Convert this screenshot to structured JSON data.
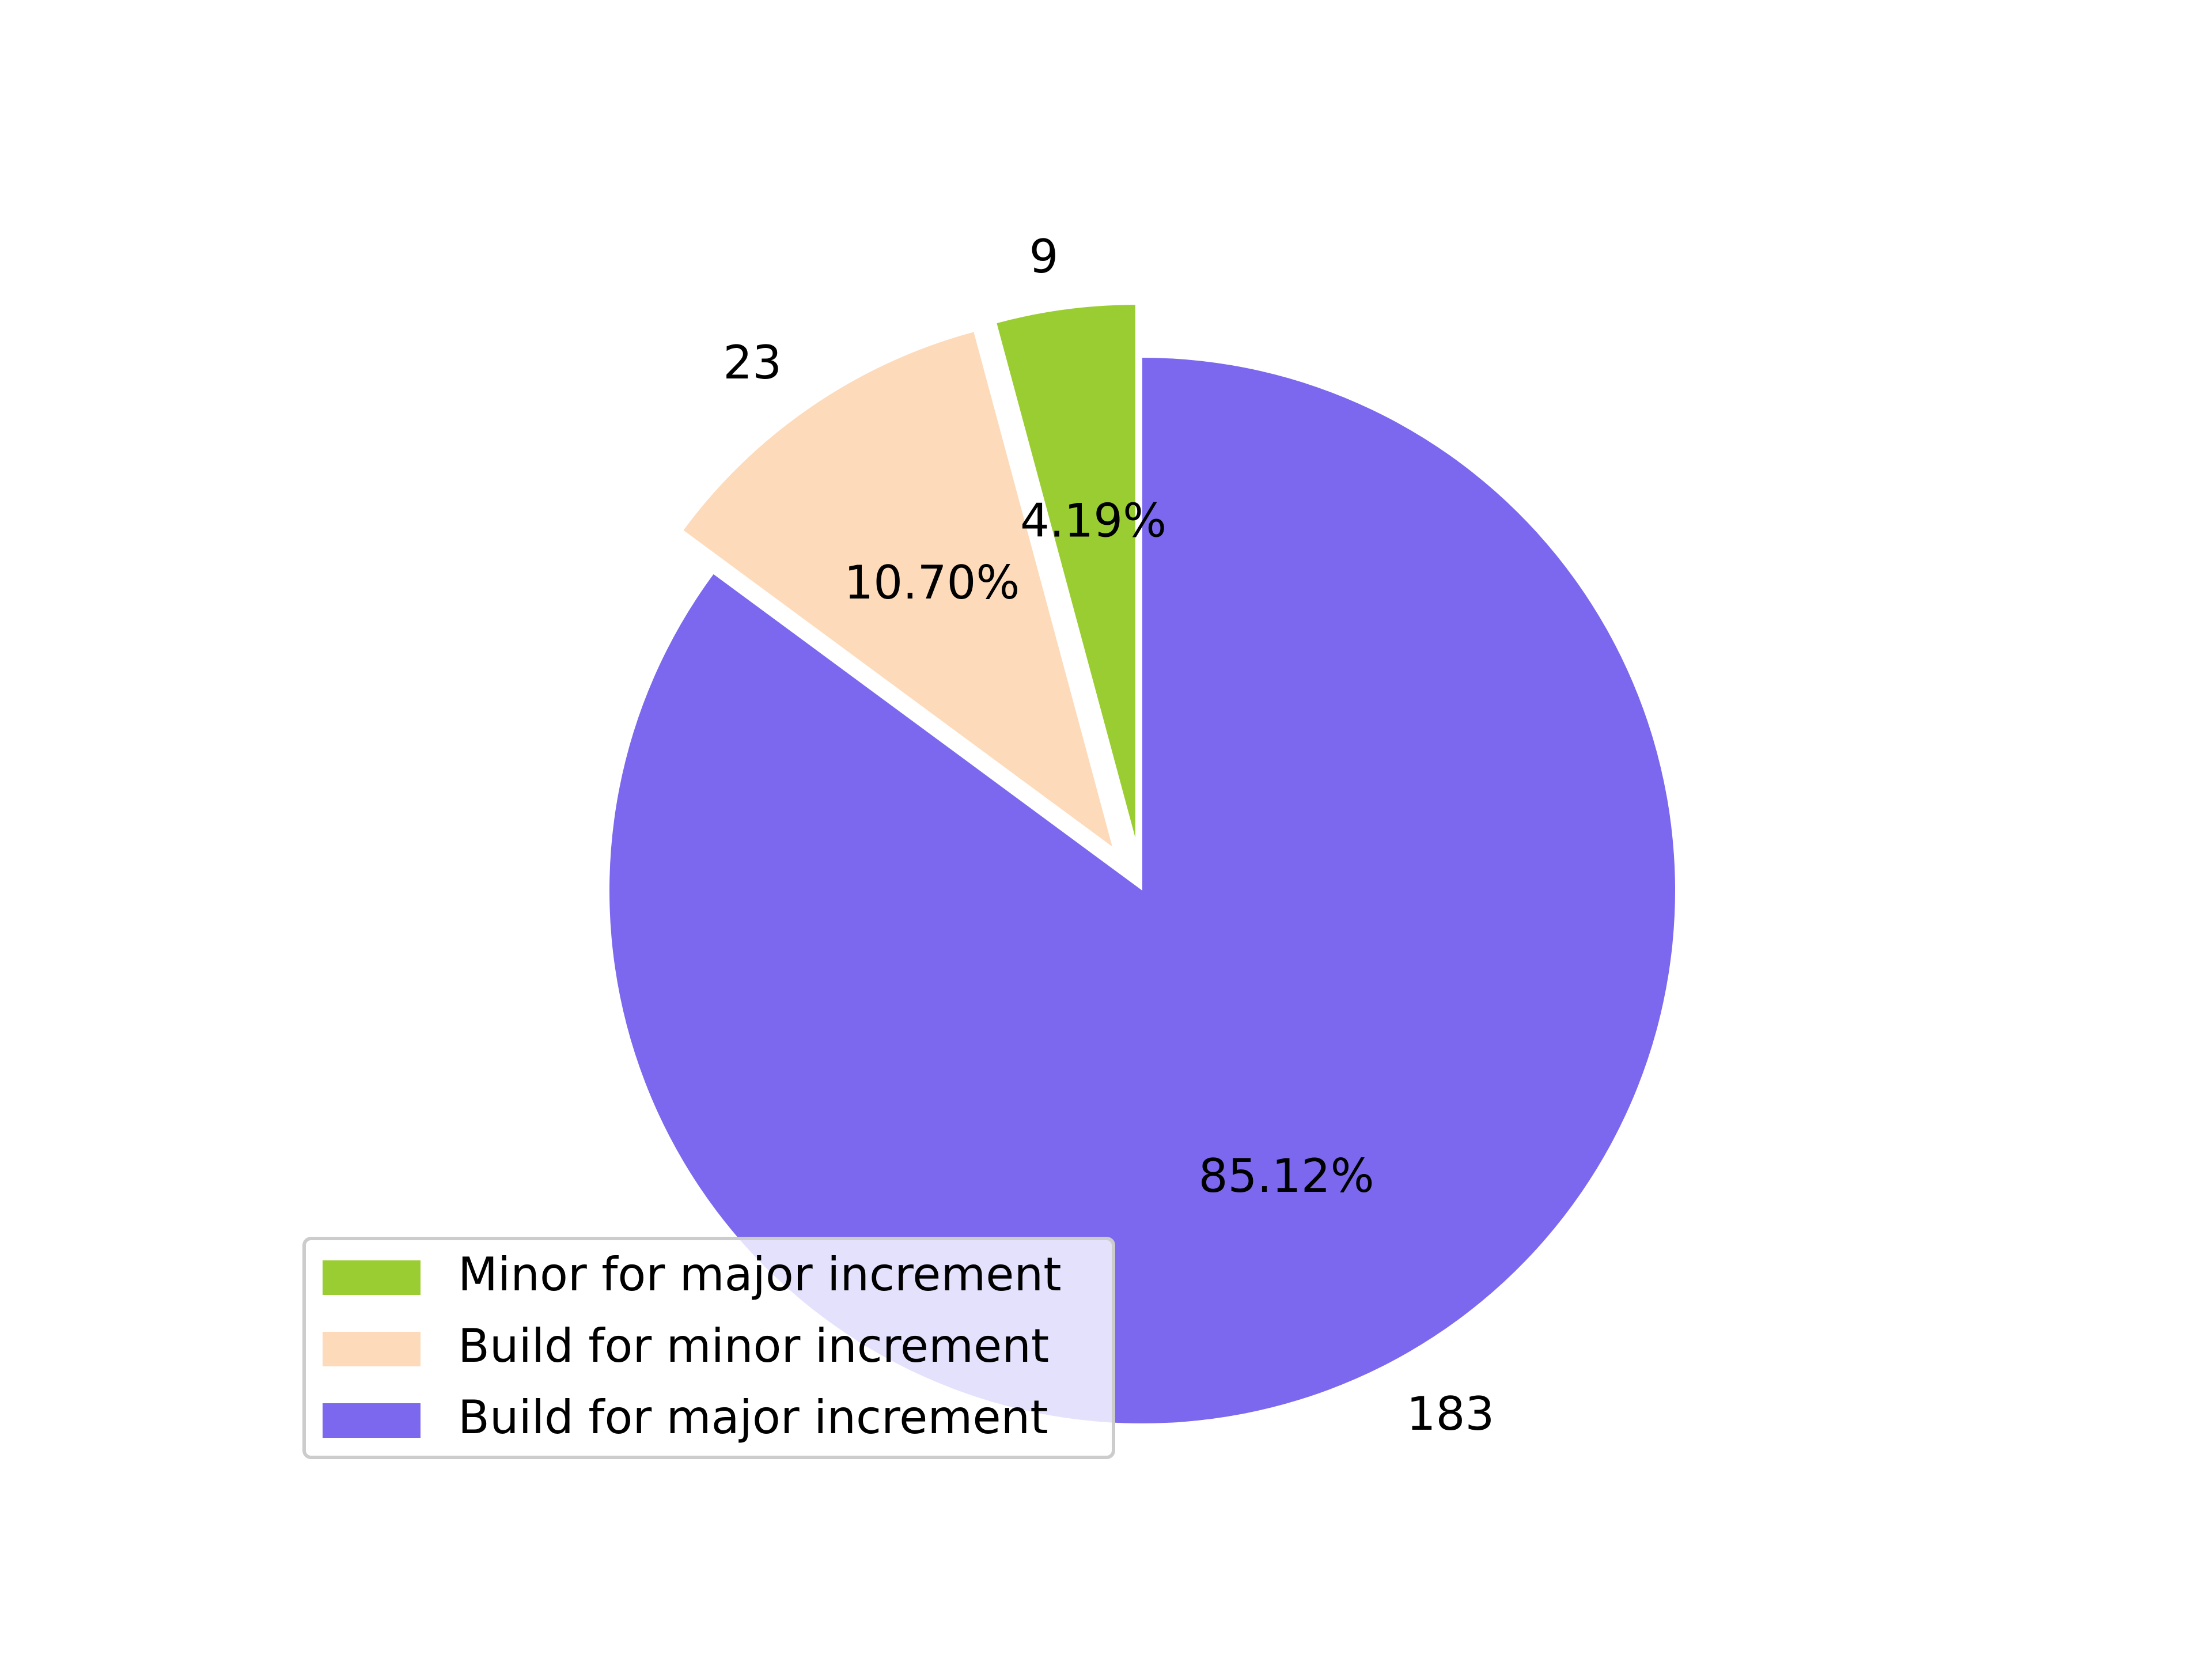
{
  "chart_data": {
    "type": "pie",
    "start_angle_deg": 90,
    "direction": "counterclockwise",
    "slices": [
      {
        "label": "Minor for major increment",
        "value": 9,
        "percent_label": "4.19%",
        "value_label": "9",
        "color": "#9acd32",
        "exploded": true
      },
      {
        "label": "Build for minor increment",
        "value": 23,
        "percent_label": "10.70%",
        "value_label": "23",
        "color": "#fddab9",
        "exploded": true
      },
      {
        "label": "Build for major increment",
        "value": 183,
        "percent_label": "85.12%",
        "value_label": "183",
        "color": "#7b68ee",
        "exploded": false
      }
    ],
    "legend": {
      "placement": "lower-left",
      "entries": [
        "Minor for major increment",
        "Build for minor increment",
        "Build for major increment"
      ]
    }
  }
}
